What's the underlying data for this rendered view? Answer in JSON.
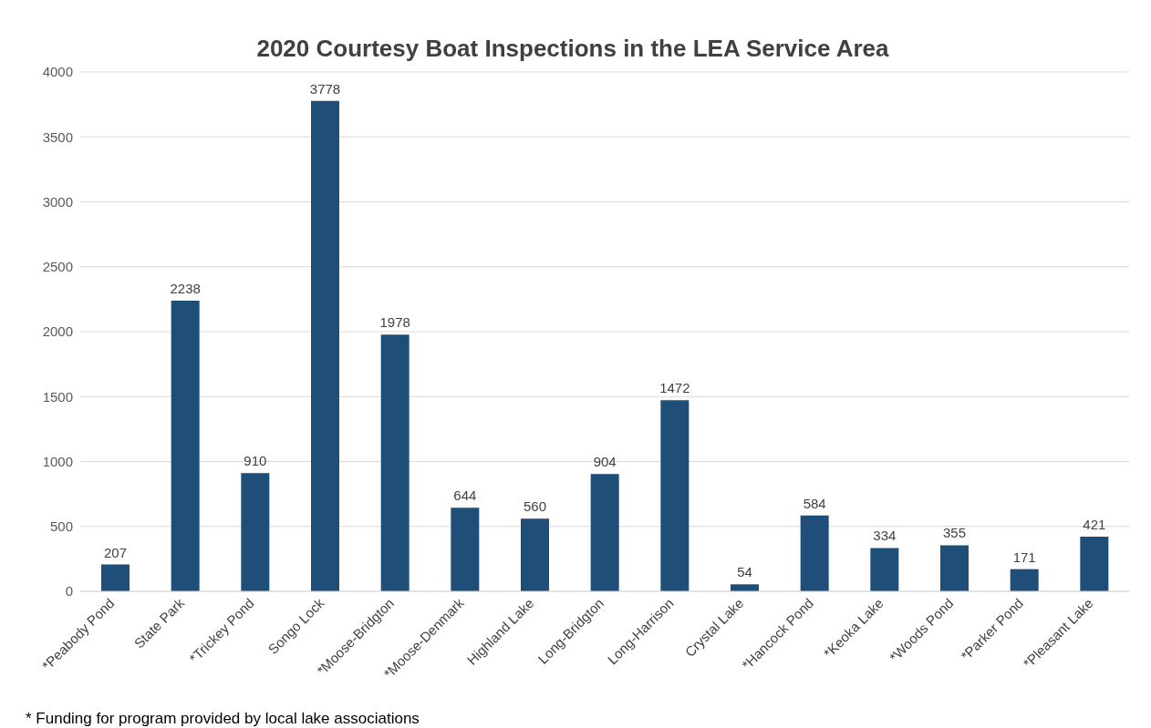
{
  "chart_data": {
    "type": "bar",
    "title": "2020 Courtesy Boat Inspections in the LEA Service Area",
    "categories": [
      "*Peabody Pond",
      "State Park",
      "*Trickey Pond",
      "Songo Lock",
      "*Moose-Bridgton",
      "*Moose-Denmark",
      "Highland Lake",
      "Long-Bridgton",
      "Long-Harrison",
      "Crystal Lake",
      "*Hancock Pond",
      "*Keoka Lake",
      "*Woods Pond",
      "*Parker Pond",
      "*Pleasant Lake"
    ],
    "values": [
      207,
      2238,
      910,
      3778,
      1978,
      644,
      560,
      904,
      1472,
      54,
      584,
      334,
      355,
      171,
      421
    ],
    "color": "#1f4e79",
    "ylim": [
      0,
      4000
    ],
    "yticks": [
      0,
      500,
      1000,
      1500,
      2000,
      2500,
      3000,
      3500,
      4000
    ],
    "grid": "y",
    "data_labels": true,
    "annotations": [
      "* Funding for program provided by local lake associations"
    ]
  }
}
